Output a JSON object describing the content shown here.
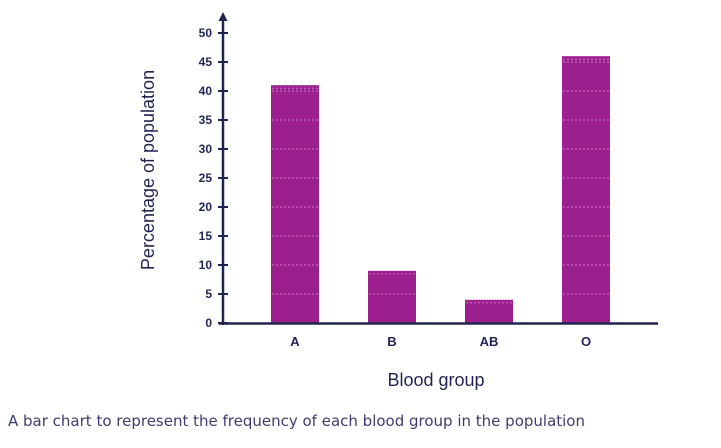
{
  "chart_data": {
    "type": "bar",
    "categories": [
      "A",
      "B",
      "AB",
      "O"
    ],
    "values": [
      41,
      9,
      4,
      46
    ],
    "title": "",
    "xlabel": "Blood group",
    "ylabel": "Percentage of population",
    "ylim": [
      0,
      50
    ],
    "yticks": [
      0,
      5,
      10,
      15,
      20,
      25,
      30,
      35,
      40,
      45,
      50
    ],
    "grid": false,
    "bar_color": "#9c1f8f",
    "bar_line_color": "#c77bbd",
    "axis_color": "#1f2452"
  },
  "caption": "A bar chart to represent the frequency of each blood group in the population"
}
